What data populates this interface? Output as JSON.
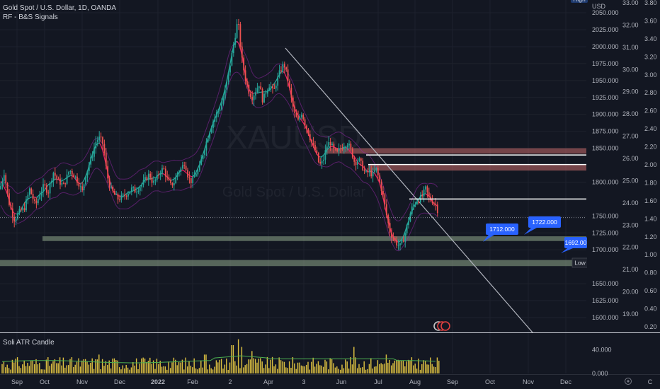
{
  "header": {
    "title": "Gold Spot / U.S. Dollar, 1D, OANDA",
    "indicator": "RF - B&S Signals",
    "subpane_title": "Soli ATR Candle",
    "top_badge": "High",
    "watermark_symbol": "XAUUSD",
    "watermark_name": "Gold Spot / U.S. Dollar"
  },
  "colors": {
    "background": "#131722",
    "grid": "#1e222d",
    "up": "#26a69a",
    "down": "#ef5350",
    "zone_resistance": "#c76a6a",
    "zone_support": "#8fa88a",
    "trendline": "#b2b5be",
    "atr_bar": "#e0c341",
    "atr_line": "#4caf50"
  },
  "chart_data": {
    "type": "candlestick",
    "title": "Gold Spot / U.S. Dollar, 1D, OANDA",
    "x": [
      "Sep",
      "Oct",
      "Nov",
      "Dec",
      "2022",
      "Feb",
      "2",
      "Apr",
      "3",
      "Jun",
      "Jul",
      "Aug",
      "Sep",
      "Oct",
      "Nov",
      "Dec"
    ],
    "left_axis": {
      "label": "USD",
      "ticks": [
        "2050.000",
        "2025.000",
        "2000.000",
        "1975.000",
        "1950.000",
        "1925.000",
        "1900.000",
        "1875.000",
        "1850.000",
        "1800.000",
        "1750.000",
        "1725.000",
        "1700.000",
        "1650.000",
        "1625.000",
        "1600.000"
      ],
      "ylim": [
        1585,
        2090
      ]
    },
    "right_axis": {
      "ticks": [
        "33.00",
        "32.00",
        "31.00",
        "30.00",
        "29.00",
        "28.00",
        "27.00",
        "26.00",
        "25.00",
        "24.00",
        "23.00",
        "22.00",
        "21.00",
        "20.00",
        "19.00"
      ]
    },
    "far_right_axis": {
      "ticks": [
        "3.80",
        "3.60",
        "3.40",
        "3.20",
        "3.00",
        "2.80",
        "2.60",
        "2.40",
        "2.20",
        "2.00",
        "1.80",
        "1.60",
        "1.40",
        "1.20",
        "1.00",
        "0.80",
        "0.60",
        "0.40",
        "0.20"
      ]
    },
    "anchors": [
      [
        0,
        1790
      ],
      [
        6,
        1815
      ],
      [
        12,
        1772
      ],
      [
        20,
        1745
      ],
      [
        28,
        1757
      ],
      [
        34,
        1760
      ],
      [
        42,
        1790
      ],
      [
        50,
        1765
      ],
      [
        56,
        1782
      ],
      [
        62,
        1795
      ],
      [
        68,
        1785
      ],
      [
        75,
        1815
      ],
      [
        82,
        1802
      ],
      [
        90,
        1795
      ],
      [
        98,
        1818
      ],
      [
        105,
        1810
      ],
      [
        112,
        1797
      ],
      [
        116,
        1785
      ],
      [
        121,
        1810
      ],
      [
        126,
        1827
      ],
      [
        131,
        1842
      ],
      [
        136,
        1862
      ],
      [
        141,
        1865
      ],
      [
        146,
        1855
      ],
      [
        151,
        1811
      ],
      [
        156,
        1790
      ],
      [
        161,
        1783
      ],
      [
        166,
        1775
      ],
      [
        171,
        1777
      ],
      [
        176,
        1780
      ],
      [
        181,
        1785
      ],
      [
        186,
        1790
      ],
      [
        191,
        1787
      ],
      [
        196,
        1792
      ],
      [
        201,
        1797
      ],
      [
        206,
        1805
      ],
      [
        211,
        1812
      ],
      [
        216,
        1798
      ],
      [
        221,
        1805
      ],
      [
        226,
        1816
      ],
      [
        231,
        1820
      ],
      [
        236,
        1805
      ],
      [
        241,
        1795
      ],
      [
        246,
        1800
      ],
      [
        251,
        1815
      ],
      [
        256,
        1820
      ],
      [
        261,
        1830
      ],
      [
        266,
        1806
      ],
      [
        271,
        1800
      ],
      [
        276,
        1812
      ],
      [
        281,
        1818
      ],
      [
        286,
        1840
      ],
      [
        291,
        1858
      ],
      [
        296,
        1876
      ],
      [
        301,
        1890
      ],
      [
        306,
        1902
      ],
      [
        311,
        1910
      ],
      [
        316,
        1925
      ],
      [
        321,
        1950
      ],
      [
        326,
        1980
      ],
      [
        331,
        2010
      ],
      [
        336,
        2040
      ],
      [
        341,
        1985
      ],
      [
        346,
        1955
      ],
      [
        351,
        1935
      ],
      [
        356,
        1925
      ],
      [
        361,
        1935
      ],
      [
        366,
        1945
      ],
      [
        371,
        1920
      ],
      [
        376,
        1935
      ],
      [
        381,
        1945
      ],
      [
        386,
        1932
      ],
      [
        391,
        1950
      ],
      [
        396,
        1965
      ],
      [
        401,
        1975
      ],
      [
        406,
        1955
      ],
      [
        411,
        1925
      ],
      [
        416,
        1900
      ],
      [
        421,
        1890
      ],
      [
        426,
        1903
      ],
      [
        431,
        1885
      ],
      [
        436,
        1872
      ],
      [
        441,
        1855
      ],
      [
        446,
        1845
      ],
      [
        451,
        1825
      ],
      [
        456,
        1830
      ],
      [
        461,
        1852
      ],
      [
        466,
        1860
      ],
      [
        471,
        1847
      ],
      [
        476,
        1843
      ],
      [
        481,
        1850
      ],
      [
        486,
        1854
      ],
      [
        491,
        1858
      ],
      [
        496,
        1846
      ],
      [
        501,
        1828
      ],
      [
        506,
        1834
      ],
      [
        511,
        1825
      ],
      [
        516,
        1812
      ],
      [
        521,
        1816
      ],
      [
        526,
        1810
      ],
      [
        531,
        1820
      ],
      [
        536,
        1801
      ],
      [
        541,
        1780
      ],
      [
        546,
        1750
      ],
      [
        551,
        1725
      ],
      [
        556,
        1717
      ],
      [
        561,
        1708
      ],
      [
        566,
        1705
      ],
      [
        571,
        1720
      ],
      [
        576,
        1740
      ],
      [
        581,
        1760
      ],
      [
        586,
        1770
      ],
      [
        591,
        1774
      ],
      [
        596,
        1779
      ],
      [
        601,
        1790
      ],
      [
        606,
        1776
      ],
      [
        611,
        1772
      ],
      [
        616,
        1766
      ],
      [
        620,
        1750
      ]
    ],
    "zones": [
      {
        "name": "resistance-zone-upper",
        "from": 1842,
        "to": 1850
      },
      {
        "name": "resistance-zone-lower",
        "from": 1817,
        "to": 1826
      },
      {
        "name": "support-zone-upper",
        "from": 1713,
        "to": 1720
      },
      {
        "name": "support-zone-lower",
        "from": 1676,
        "to": 1685
      }
    ],
    "horizontal_lines": [
      {
        "name": "level-1840",
        "price": 1840,
        "label": "1840.000"
      },
      {
        "name": "level-1826",
        "price": 1826,
        "label": "1826.000"
      },
      {
        "name": "level-1774",
        "price": 1774.986,
        "label": "1774.986"
      }
    ],
    "current_price": {
      "price": 1747.5,
      "label": "1747.500"
    },
    "low_marker": {
      "price": 1680.935,
      "tag": "Low",
      "label": "1680.935"
    },
    "callouts": [
      {
        "name": "callout-1712",
        "label": "1712.000",
        "price": 1712
      },
      {
        "name": "callout-1722",
        "label": "1722.000",
        "price": 1722
      },
      {
        "name": "callout-1692",
        "label": "1692.00",
        "price": 1692
      }
    ],
    "trendline": {
      "from": [
        2022.25,
        1998
      ],
      "to": [
        2022.95,
        1584
      ]
    },
    "atr": {
      "ticks": [
        "40.000",
        "0.000"
      ],
      "ylim": [
        0,
        60
      ]
    }
  }
}
